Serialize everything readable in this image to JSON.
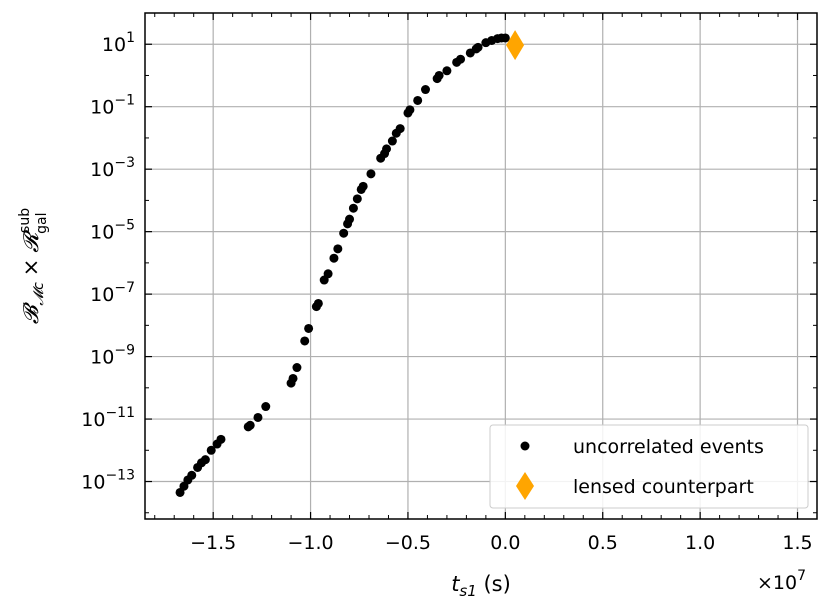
{
  "chart_data": {
    "type": "scatter",
    "xlabel": "t_s1 (s)",
    "xlabel_var": "t",
    "xlabel_sub": "s1",
    "xlabel_unit": " (s)",
    "ylabel": "B_Mc × R_gal^sub",
    "ylabel_main": "𝓑",
    "ylabel_main_sub": "𝓜c",
    "ylabel_times": "×",
    "ylabel_r": "𝓡",
    "ylabel_r_sup": "sub",
    "ylabel_r_sub": "gal",
    "x_offset_label": "×10",
    "x_offset_exp": "7",
    "x_scale": 10000000.0,
    "xlim": [
      -1.85,
      1.6
    ],
    "ylim_log10": [
      -14.2,
      2.0
    ],
    "y_scale": "log",
    "grid": true,
    "legend_position": "lower-right",
    "x_ticks": [
      -1.5,
      -1.0,
      -0.5,
      0.0,
      0.5,
      1.0,
      1.5
    ],
    "x_tick_labels": [
      "−1.5",
      "−1.0",
      "−0.5",
      "0.0",
      "0.5",
      "1.0",
      "1.5"
    ],
    "y_ticks_log10": [
      1,
      -1,
      -3,
      -5,
      -7,
      -9,
      -11,
      -13
    ],
    "y_tick_labels": [
      {
        "base": "10",
        "exp": "1"
      },
      {
        "base": "10",
        "exp": "−1"
      },
      {
        "base": "10",
        "exp": "−3"
      },
      {
        "base": "10",
        "exp": "−5"
      },
      {
        "base": "10",
        "exp": "−7"
      },
      {
        "base": "10",
        "exp": "−9"
      },
      {
        "base": "10",
        "exp": "−11"
      },
      {
        "base": "10",
        "exp": "−13"
      }
    ],
    "series": [
      {
        "name": "uncorrelated events",
        "marker": "circle",
        "color": "#000000",
        "points_log10y": [
          [
            -1.67,
            -13.35
          ],
          [
            -1.65,
            -13.15
          ],
          [
            -1.63,
            -12.95
          ],
          [
            -1.61,
            -12.8
          ],
          [
            -1.58,
            -12.55
          ],
          [
            -1.56,
            -12.4
          ],
          [
            -1.54,
            -12.3
          ],
          [
            -1.51,
            -12.0
          ],
          [
            -1.48,
            -11.8
          ],
          [
            -1.46,
            -11.65
          ],
          [
            -1.32,
            -11.25
          ],
          [
            -1.31,
            -11.2
          ],
          [
            -1.27,
            -10.95
          ],
          [
            -1.23,
            -10.6
          ],
          [
            -1.1,
            -9.85
          ],
          [
            -1.09,
            -9.7
          ],
          [
            -1.07,
            -9.35
          ],
          [
            -1.03,
            -8.5
          ],
          [
            -1.01,
            -8.1
          ],
          [
            -0.97,
            -7.4
          ],
          [
            -0.96,
            -7.3
          ],
          [
            -0.93,
            -6.55
          ],
          [
            -0.91,
            -6.35
          ],
          [
            -0.88,
            -5.85
          ],
          [
            -0.86,
            -5.55
          ],
          [
            -0.83,
            -5.05
          ],
          [
            -0.81,
            -4.75
          ],
          [
            -0.8,
            -4.6
          ],
          [
            -0.78,
            -4.25
          ],
          [
            -0.76,
            -3.95
          ],
          [
            -0.74,
            -3.65
          ],
          [
            -0.73,
            -3.55
          ],
          [
            -0.69,
            -3.15
          ],
          [
            -0.64,
            -2.65
          ],
          [
            -0.62,
            -2.5
          ],
          [
            -0.61,
            -2.35
          ],
          [
            -0.58,
            -2.1
          ],
          [
            -0.56,
            -1.85
          ],
          [
            -0.54,
            -1.7
          ],
          [
            -0.5,
            -1.2
          ],
          [
            -0.49,
            -1.1
          ],
          [
            -0.45,
            -0.8
          ],
          [
            -0.41,
            -0.45
          ],
          [
            -0.35,
            -0.1
          ],
          [
            -0.34,
            0.0
          ],
          [
            -0.3,
            0.15
          ],
          [
            -0.25,
            0.42
          ],
          [
            -0.23,
            0.52
          ],
          [
            -0.18,
            0.72
          ],
          [
            -0.15,
            0.85
          ],
          [
            -0.14,
            0.9
          ],
          [
            -0.1,
            1.05
          ],
          [
            -0.07,
            1.12
          ],
          [
            -0.04,
            1.18
          ],
          [
            -0.02,
            1.2
          ],
          [
            0.0,
            1.2
          ]
        ]
      },
      {
        "name": "lensed counterpart",
        "marker": "diamond",
        "color": "#FFA500",
        "points_log10y": [
          [
            0.05,
            0.97
          ]
        ]
      }
    ]
  }
}
